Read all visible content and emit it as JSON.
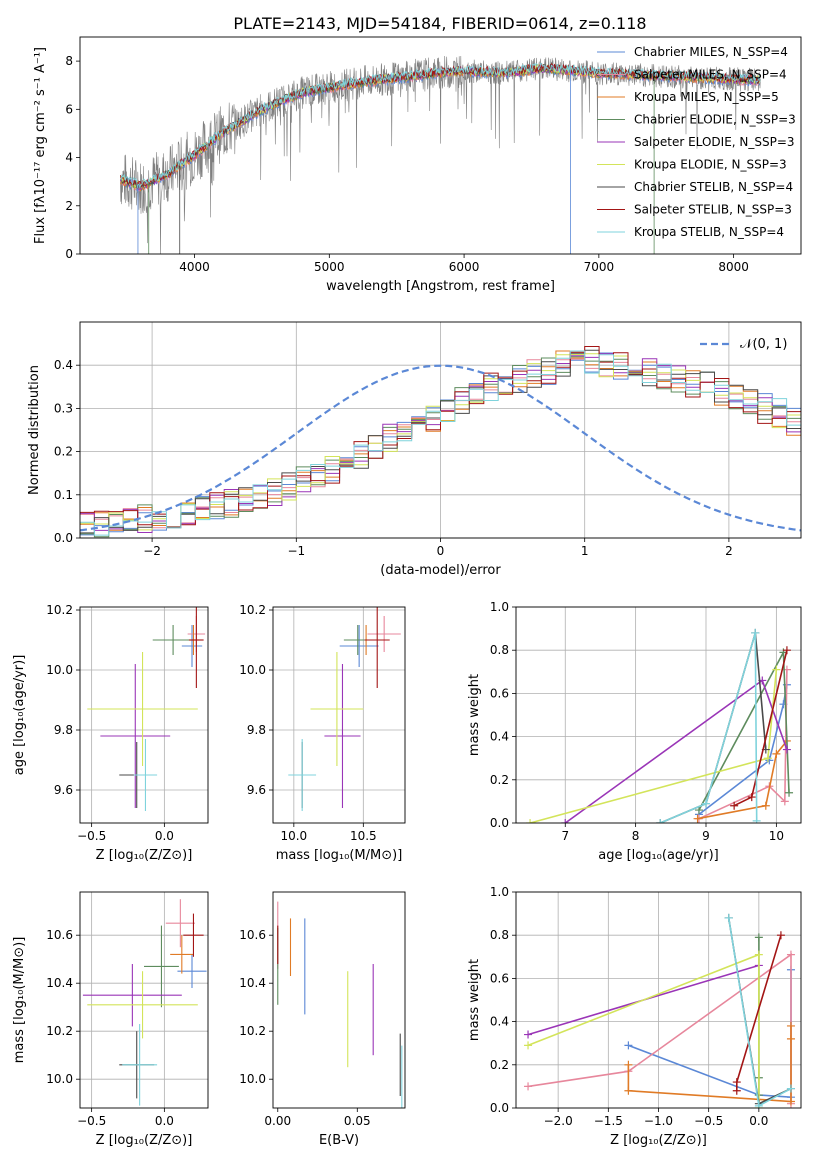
{
  "figure_title": "PLATE=2143, MJD=54184, FIBERID=0614, z=0.118",
  "colors": {
    "chabrier_miles": "#5b88d6",
    "salpeter_miles": "#e7879c",
    "kroupa_miles": "#e07b26",
    "chabrier_elodie": "#5e8c5e",
    "salpeter_elodie": "#9a35b7",
    "kroupa_elodie": "#d3e45a",
    "chabrier_stelib": "#4a4a4a",
    "salpeter_stelib": "#a31515",
    "kroupa_stelib": "#7fd3dc",
    "observed": "#7f7f7f",
    "normal": "#5b88d6"
  },
  "chart_data": [
    {
      "id": "spectrum",
      "type": "line",
      "title": "PLATE=2143, MJD=54184, FIBERID=0614, z=0.118",
      "xlabel": "wavelength [Angstrom, rest frame]",
      "ylabel": "Flux [fλ10⁻¹⁷ erg cm⁻² s⁻¹ A⁻¹]",
      "xlim": [
        3150,
        8500
      ],
      "ylim": [
        0,
        9
      ],
      "xticks": [
        4000,
        5000,
        6000,
        7000,
        8000
      ],
      "yticks": [
        0,
        2,
        4,
        6,
        8
      ],
      "grid": false,
      "legend": "right",
      "legend_entries": [
        "Chabrier MILES, N_SSP=4",
        "Salpeter MILES, N_SSP=4",
        "Kroupa MILES, N_SSP=5",
        "Chabrier ELODIE, N_SSP=3",
        "Salpeter ELODIE, N_SSP=3",
        "Kroupa ELODIE, N_SSP=3",
        "Chabrier STELIB, N_SSP=4",
        "Salpeter STELIB, N_SSP=3",
        "Kroupa STELIB, N_SSP=4"
      ],
      "continuum": {
        "x": [
          3450,
          3600,
          3800,
          4000,
          4200,
          4500,
          4800,
          5000,
          5200,
          5500,
          5800,
          6000,
          6300,
          6600,
          7000,
          7400,
          7800,
          8200
        ],
        "y": [
          3.1,
          2.8,
          3.3,
          4.1,
          5.0,
          6.0,
          6.7,
          6.9,
          7.1,
          7.3,
          7.5,
          7.6,
          7.5,
          7.7,
          7.5,
          7.4,
          7.3,
          7.2
        ]
      }
    },
    {
      "id": "residuals",
      "type": "step",
      "xlabel": "(data-model)/error",
      "ylabel": "Normed distribution",
      "xlim": [
        -2.5,
        2.5
      ],
      "ylim": [
        0,
        0.5
      ],
      "xticks": [
        -2,
        -1,
        0,
        1,
        2
      ],
      "yticks": [
        0.0,
        0.1,
        0.2,
        0.3,
        0.4
      ],
      "grid": true,
      "legend": "top-right",
      "normal_label": "𝒩(0, 1)",
      "bin_width": 0.1,
      "x_start": -2.5,
      "histogram_envelope": [
        0.03,
        0.03,
        0.035,
        0.04,
        0.045,
        0.05,
        0.055,
        0.06,
        0.065,
        0.07,
        0.08,
        0.09,
        0.1,
        0.11,
        0.12,
        0.13,
        0.15,
        0.16,
        0.18,
        0.19,
        0.21,
        0.23,
        0.25,
        0.26,
        0.28,
        0.3,
        0.32,
        0.34,
        0.35,
        0.36,
        0.37,
        0.38,
        0.39,
        0.4,
        0.41,
        0.41,
        0.4,
        0.4,
        0.39,
        0.38,
        0.38,
        0.37,
        0.36,
        0.35,
        0.34,
        0.33,
        0.32,
        0.3,
        0.29,
        0.27,
        0.26,
        0.24,
        0.22,
        0.21,
        0.19,
        0.17,
        0.16,
        0.14,
        0.13,
        0.11,
        0.1,
        0.09,
        0.08,
        0.07,
        0.07,
        0.06,
        0.06,
        0.05,
        0.05,
        0.05,
        0.05
      ]
    },
    {
      "id": "age_vs_Z",
      "type": "scatter",
      "xlabel": "Z [log₁₀(Z/Z⊙)]",
      "ylabel": "age  [log₁₀(age/yr)]",
      "xlim": [
        -0.58,
        0.3
      ],
      "ylim": [
        9.49,
        10.21
      ],
      "xticks": [
        -0.5,
        0.0
      ],
      "yticks": [
        9.6,
        9.8,
        10.0,
        10.2
      ],
      "grid": true,
      "points": [
        {
          "series": "Chabrier MILES",
          "x": 0.19,
          "y": 10.08,
          "xerr": 0.07,
          "yerr": 0.07
        },
        {
          "series": "Salpeter MILES",
          "x": 0.22,
          "y": 10.12,
          "xerr": 0.06,
          "yerr": 0.06
        },
        {
          "series": "Kroupa MILES",
          "x": 0.2,
          "y": 10.1,
          "xerr": 0.04,
          "yerr": 0.05
        },
        {
          "series": "Chabrier ELODIE",
          "x": 0.06,
          "y": 10.1,
          "xerr": 0.14,
          "yerr": 0.05
        },
        {
          "series": "Salpeter ELODIE",
          "x": -0.2,
          "y": 9.78,
          "xerr": 0.24,
          "yerr": 0.24
        },
        {
          "series": "Kroupa ELODIE",
          "x": -0.15,
          "y": 9.87,
          "xerr": 0.38,
          "yerr": 0.19
        },
        {
          "series": "Chabrier STELIB",
          "x": -0.19,
          "y": 9.65,
          "xerr": 0.12,
          "yerr": 0.11
        },
        {
          "series": "Salpeter STELIB",
          "x": 0.22,
          "y": 10.1,
          "xerr": 0.05,
          "yerr": 0.16
        },
        {
          "series": "Kroupa STELIB",
          "x": -0.13,
          "y": 9.65,
          "xerr": 0.08,
          "yerr": 0.12
        }
      ]
    },
    {
      "id": "age_vs_mass",
      "type": "scatter",
      "xlabel": "mass [log₁₀(M/M⊙)]",
      "ylabel": "",
      "xlim": [
        9.85,
        10.8
      ],
      "ylim": [
        9.49,
        10.21
      ],
      "xticks": [
        10.0,
        10.5
      ],
      "yticks": [
        9.6,
        9.8,
        10.0,
        10.2
      ],
      "grid": true,
      "points": [
        {
          "series": "Chabrier MILES",
          "x": 10.47,
          "y": 10.08,
          "xerr": 0.14,
          "yerr": 0.07
        },
        {
          "series": "Salpeter MILES",
          "x": 10.65,
          "y": 10.12,
          "xerr": 0.12,
          "yerr": 0.06
        },
        {
          "series": "Kroupa MILES",
          "x": 10.52,
          "y": 10.1,
          "xerr": 0.1,
          "yerr": 0.05
        },
        {
          "series": "Chabrier ELODIE",
          "x": 10.46,
          "y": 10.1,
          "xerr": 0.1,
          "yerr": 0.05
        },
        {
          "series": "Salpeter ELODIE",
          "x": 10.35,
          "y": 9.78,
          "xerr": 0.13,
          "yerr": 0.24
        },
        {
          "series": "Kroupa ELODIE",
          "x": 10.31,
          "y": 9.87,
          "xerr": 0.19,
          "yerr": 0.19
        },
        {
          "series": "Chabrier STELIB",
          "x": 10.06,
          "y": 9.65,
          "xerr": 0.09,
          "yerr": 0.11
        },
        {
          "series": "Salpeter STELIB",
          "x": 10.6,
          "y": 10.1,
          "xerr": 0.09,
          "yerr": 0.16
        },
        {
          "series": "Kroupa STELIB",
          "x": 10.06,
          "y": 9.65,
          "xerr": 0.1,
          "yerr": 0.12
        }
      ]
    },
    {
      "id": "weight_vs_age",
      "type": "line",
      "xlabel": "age  [log₁₀(age/yr)]",
      "ylabel": "mass weight",
      "xlim": [
        6.3,
        10.35
      ],
      "ylim": [
        0,
        1
      ],
      "xticks": [
        7,
        8,
        9,
        10
      ],
      "yticks": [
        0.0,
        0.2,
        0.4,
        0.6,
        0.8,
        1.0
      ],
      "grid": true,
      "series": [
        {
          "name": "Chabrier MILES",
          "x": [
            8.9,
            9.9,
            10.1,
            10.15
          ],
          "y": [
            0.04,
            0.29,
            0.55,
            0.64
          ]
        },
        {
          "name": "Salpeter MILES",
          "x": [
            8.9,
            9.9,
            10.12,
            10.15
          ],
          "y": [
            0.02,
            0.17,
            0.1,
            0.71
          ]
        },
        {
          "name": "Kroupa MILES",
          "x": [
            8.88,
            9.85,
            10.0,
            10.15
          ],
          "y": [
            0.02,
            0.08,
            0.32,
            0.38
          ]
        },
        {
          "name": "Chabrier ELODIE",
          "x": [
            8.9,
            10.1,
            10.18
          ],
          "y": [
            0.06,
            0.79,
            0.14
          ]
        },
        {
          "name": "Salpeter ELODIE",
          "x": [
            7.0,
            9.8,
            10.15
          ],
          "y": [
            0.0,
            0.66,
            0.34
          ]
        },
        {
          "name": "Kroupa ELODIE",
          "x": [
            6.5,
            9.88,
            10.0
          ],
          "y": [
            0.0,
            0.3,
            0.71
          ]
        },
        {
          "name": "Chabrier STELIB",
          "x": [
            8.35,
            9.0,
            9.7,
            9.85
          ],
          "y": [
            0.0,
            0.09,
            0.88,
            0.34
          ]
        },
        {
          "name": "Salpeter STELIB",
          "x": [
            9.4,
            9.65,
            10.15
          ],
          "y": [
            0.08,
            0.12,
            0.8
          ]
        },
        {
          "name": "Kroupa STELIB",
          "x": [
            8.35,
            9.0,
            9.7,
            9.72
          ],
          "y": [
            0.0,
            0.09,
            0.88,
            0.01
          ]
        }
      ]
    },
    {
      "id": "mass_vs_Z",
      "type": "scatter",
      "xlabel": "Z [log₁₀(Z/Z⊙)]",
      "ylabel": "mass [log₁₀(M/M⊙)]",
      "xlim": [
        -0.58,
        0.3
      ],
      "ylim": [
        9.88,
        10.78
      ],
      "xticks": [
        -0.5,
        0.0
      ],
      "yticks": [
        10.0,
        10.2,
        10.4,
        10.6
      ],
      "grid": true,
      "points": [
        {
          "series": "Chabrier MILES",
          "x": 0.19,
          "y": 10.45,
          "xerr": 0.1,
          "yerr": 0.07
        },
        {
          "series": "Salpeter MILES",
          "x": 0.11,
          "y": 10.65,
          "xerr": 0.1,
          "yerr": 0.1
        },
        {
          "series": "Kroupa MILES",
          "x": 0.12,
          "y": 10.52,
          "xerr": 0.08,
          "yerr": 0.08
        },
        {
          "series": "Chabrier ELODIE",
          "x": -0.02,
          "y": 10.47,
          "xerr": 0.12,
          "yerr": 0.17
        },
        {
          "series": "Salpeter ELODIE",
          "x": -0.22,
          "y": 10.35,
          "xerr": 0.34,
          "yerr": 0.13
        },
        {
          "series": "Kroupa ELODIE",
          "x": -0.15,
          "y": 10.31,
          "xerr": 0.38,
          "yerr": 0.14
        },
        {
          "series": "Chabrier STELIB",
          "x": -0.19,
          "y": 10.06,
          "xerr": 0.12,
          "yerr": 0.14
        },
        {
          "series": "Salpeter STELIB",
          "x": 0.2,
          "y": 10.6,
          "xerr": 0.07,
          "yerr": 0.09
        },
        {
          "series": "Kroupa STELIB",
          "x": -0.17,
          "y": 10.06,
          "xerr": 0.12,
          "yerr": 0.17
        }
      ]
    },
    {
      "id": "mass_vs_ebv",
      "type": "errorbar",
      "xlabel": "E(B-V)",
      "ylabel": "",
      "xlim": [
        -0.003,
        0.08
      ],
      "ylim": [
        9.88,
        10.78
      ],
      "xticks": [
        0.0,
        0.05
      ],
      "yticks": [
        10.0,
        10.2,
        10.4,
        10.6
      ],
      "grid": false,
      "points": [
        {
          "series": "Chabrier MILES",
          "x": 0.017,
          "y": 10.47,
          "yerr": 0.2
        },
        {
          "series": "Salpeter MILES",
          "x": 0.0,
          "y": 10.6,
          "yerr": 0.14
        },
        {
          "series": "Kroupa MILES",
          "x": 0.008,
          "y": 10.55,
          "yerr": 0.12
        },
        {
          "series": "Chabrier ELODIE",
          "x": 0.0,
          "y": 10.47,
          "yerr": 0.16
        },
        {
          "series": "Salpeter ELODIE",
          "x": 0.06,
          "y": 10.29,
          "yerr": 0.19
        },
        {
          "series": "Kroupa ELODIE",
          "x": 0.044,
          "y": 10.25,
          "yerr": 0.2
        },
        {
          "series": "Chabrier STELIB",
          "x": 0.077,
          "y": 10.06,
          "yerr": 0.13
        },
        {
          "series": "Salpeter STELIB",
          "x": 0.0,
          "y": 10.56,
          "yerr": 0.08
        },
        {
          "series": "Kroupa STELIB",
          "x": 0.078,
          "y": 10.01,
          "yerr": 0.13
        }
      ]
    },
    {
      "id": "weight_vs_Z",
      "type": "line",
      "xlabel": "Z [log₁₀(Z/Z⊙)]",
      "ylabel": "mass weight",
      "xlim": [
        -2.42,
        0.42
      ],
      "ylim": [
        0,
        1
      ],
      "xticks": [
        -2.0,
        -1.5,
        -1.0,
        -0.5,
        0.0
      ],
      "yticks": [
        0.0,
        0.2,
        0.4,
        0.6,
        0.8,
        1.0
      ],
      "grid": true,
      "series": [
        {
          "name": "Chabrier MILES",
          "x": [
            -1.3,
            0.0,
            0.32,
            0.32
          ],
          "y": [
            0.29,
            0.06,
            0.05,
            0.64
          ]
        },
        {
          "name": "Salpeter MILES",
          "x": [
            -2.3,
            -1.3,
            0.32,
            0.32
          ],
          "y": [
            0.1,
            0.17,
            0.71,
            0.02
          ]
        },
        {
          "name": "Kroupa MILES",
          "x": [
            -1.3,
            -1.3,
            0.32,
            0.32,
            0.32
          ],
          "y": [
            0.2,
            0.08,
            0.03,
            0.38,
            0.32
          ]
        },
        {
          "name": "Chabrier ELODIE",
          "x": [
            0.0,
            0.0,
            0.0
          ],
          "y": [
            0.79,
            0.06,
            0.14
          ]
        },
        {
          "name": "Salpeter ELODIE",
          "x": [
            -2.3,
            0.0
          ],
          "y": [
            0.34,
            0.66
          ]
        },
        {
          "name": "Kroupa ELODIE",
          "x": [
            -2.3,
            0.0,
            0.0
          ],
          "y": [
            0.29,
            0.71,
            0.0
          ]
        },
        {
          "name": "Chabrier STELIB",
          "x": [
            -0.3,
            0.0,
            0.32
          ],
          "y": [
            0.88,
            0.02,
            0.09
          ]
        },
        {
          "name": "Salpeter STELIB",
          "x": [
            -0.22,
            -0.22,
            0.22
          ],
          "y": [
            0.08,
            0.12,
            0.8
          ]
        },
        {
          "name": "Kroupa STELIB",
          "x": [
            -0.3,
            0.0,
            0.32
          ],
          "y": [
            0.88,
            0.01,
            0.09
          ]
        }
      ]
    }
  ]
}
